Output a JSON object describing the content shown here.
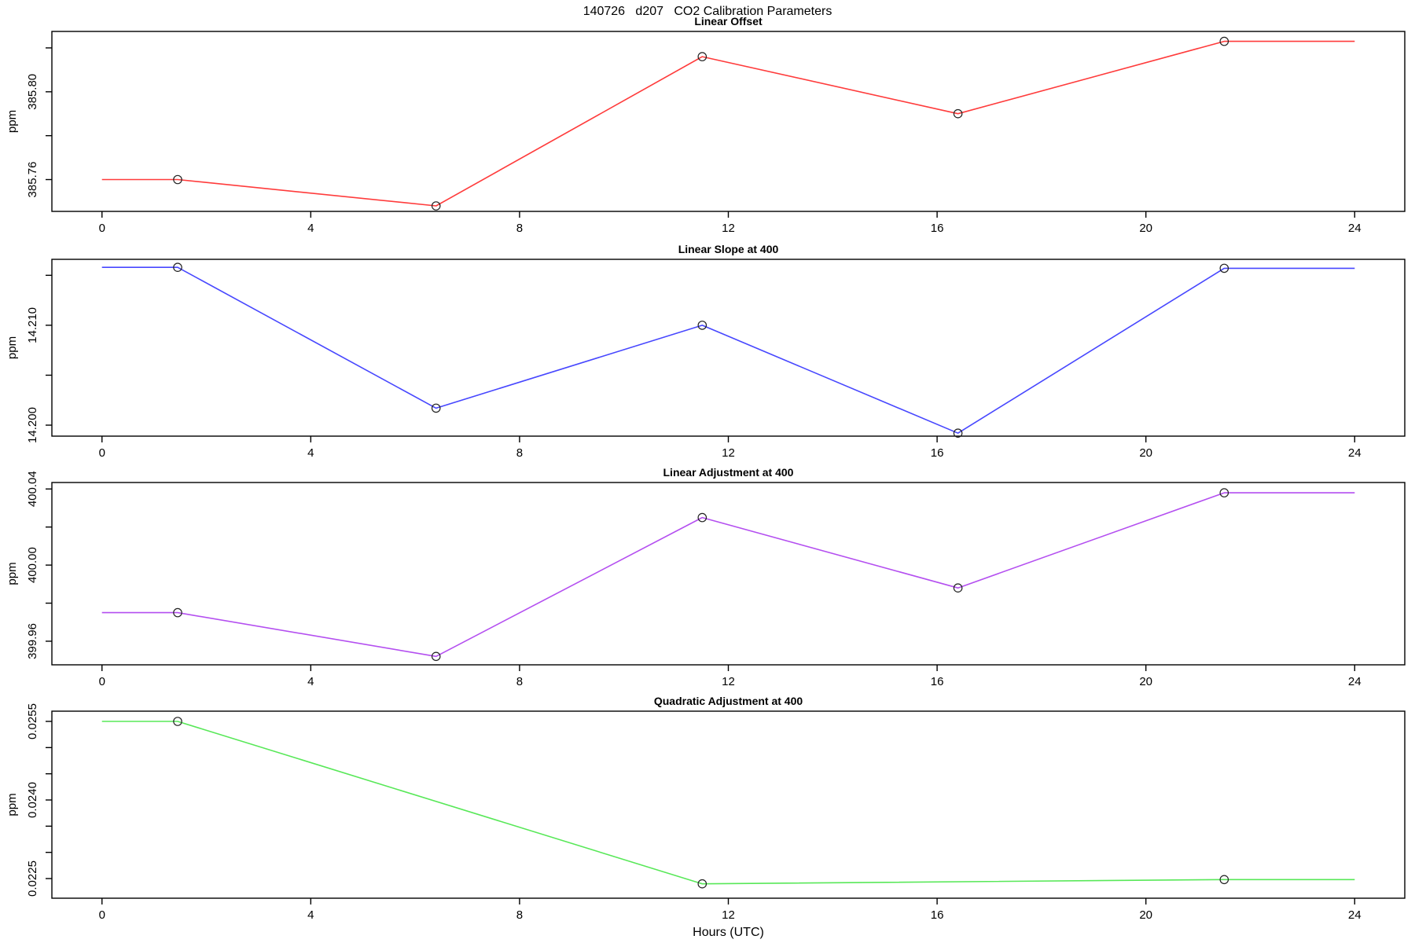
{
  "page": {
    "main_title": "140726   d207   CO2 Calibration Parameters",
    "xlabel": "Hours (UTC)"
  },
  "chart_data": [
    {
      "type": "line",
      "title": "Linear Offset",
      "ylabel": "ppm",
      "color": "#ff3b3b",
      "marker": "open-circle",
      "xlim": [
        -0.96,
        24.96
      ],
      "ylim": [
        385.7455,
        385.8275
      ],
      "x_ticks": [
        0,
        4,
        8,
        12,
        16,
        20,
        24
      ],
      "y_ticks": [
        {
          "value": 385.76,
          "label": "385.76"
        },
        {
          "value": 385.78,
          "label": ""
        },
        {
          "value": 385.8,
          "label": "385.80"
        },
        {
          "value": 385.82,
          "label": ""
        }
      ],
      "x": [
        0,
        1.45,
        6.4,
        11.5,
        16.4,
        21.5,
        24
      ],
      "y": [
        385.76,
        385.76,
        385.748,
        385.816,
        385.79,
        385.823,
        385.823
      ],
      "markers": [
        false,
        true,
        true,
        true,
        true,
        true,
        false
      ]
    },
    {
      "type": "line",
      "title": "Linear Slope at 400",
      "ylabel": "ppm",
      "color": "#4747ff",
      "marker": "open-circle",
      "xlim": [
        -0.96,
        24.96
      ],
      "ylim": [
        14.1989,
        14.2166
      ],
      "x_ticks": [
        0,
        4,
        8,
        12,
        16,
        20,
        24
      ],
      "y_ticks": [
        {
          "value": 14.2,
          "label": "14.200"
        },
        {
          "value": 14.205,
          "label": ""
        },
        {
          "value": 14.21,
          "label": "14.210"
        },
        {
          "value": 14.215,
          "label": ""
        }
      ],
      "x": [
        0,
        1.45,
        6.4,
        11.5,
        16.4,
        21.5,
        24
      ],
      "y": [
        14.2158,
        14.2158,
        14.2017,
        14.21,
        14.1992,
        14.2157,
        14.2157
      ],
      "markers": [
        false,
        true,
        true,
        true,
        true,
        true,
        false
      ]
    },
    {
      "type": "line",
      "title": "Linear Adjustment at 400",
      "ylabel": "ppm",
      "color": "#b44ff0",
      "marker": "open-circle",
      "xlim": [
        -0.96,
        24.96
      ],
      "ylim": [
        399.9476,
        400.0434
      ],
      "x_ticks": [
        0,
        4,
        8,
        12,
        16,
        20,
        24
      ],
      "y_ticks": [
        {
          "value": 399.96,
          "label": "399.96"
        },
        {
          "value": 399.98,
          "label": ""
        },
        {
          "value": 400.0,
          "label": "400.00"
        },
        {
          "value": 400.02,
          "label": ""
        },
        {
          "value": 400.04,
          "label": "400.04"
        }
      ],
      "x": [
        0,
        1.45,
        6.4,
        11.5,
        16.4,
        21.5,
        24
      ],
      "y": [
        399.975,
        399.975,
        399.952,
        400.025,
        399.988,
        400.038,
        400.038
      ],
      "markers": [
        false,
        true,
        true,
        true,
        true,
        true,
        false
      ]
    },
    {
      "type": "line",
      "title": "Quadratic Adjustment at 400",
      "ylabel": "ppm",
      "color": "#58e858",
      "marker": "open-circle",
      "xlim": [
        -0.96,
        24.96
      ],
      "ylim": [
        0.022125,
        0.025695
      ],
      "x_ticks": [
        0,
        4,
        8,
        12,
        16,
        20,
        24
      ],
      "y_ticks": [
        {
          "value": 0.0225,
          "label": "0.0225"
        },
        {
          "value": 0.023,
          "label": ""
        },
        {
          "value": 0.0235,
          "label": ""
        },
        {
          "value": 0.024,
          "label": "0.0240"
        },
        {
          "value": 0.0245,
          "label": ""
        },
        {
          "value": 0.025,
          "label": ""
        },
        {
          "value": 0.0255,
          "label": "0.0255"
        }
      ],
      "x": [
        0,
        1.45,
        11.5,
        21.5,
        24
      ],
      "y": [
        0.0255,
        0.0255,
        0.0224,
        0.02248,
        0.02248
      ],
      "markers": [
        false,
        true,
        true,
        true,
        false
      ]
    }
  ]
}
